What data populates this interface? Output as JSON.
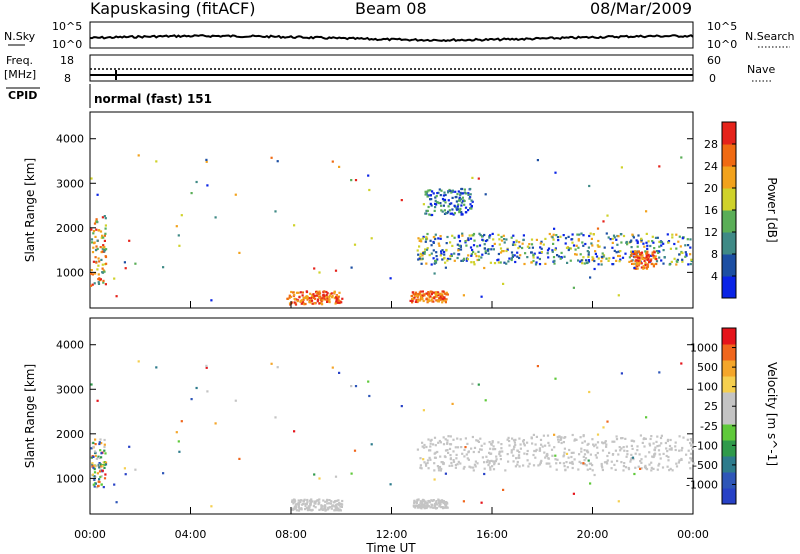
{
  "header": {
    "station": "Kapuskasing (fitACF)",
    "beam": "Beam 08",
    "date": "08/Mar/2009"
  },
  "summary_panels": {
    "nsky_label": "N.Sky",
    "nsearch_label": "N.Search",
    "nsky_ticks": [
      "10^5",
      "10^0"
    ],
    "nsky_right_ticks": [
      "10^5",
      "10^0"
    ],
    "freq_label_1": "Freq.",
    "freq_label_2": "[MHz]",
    "freq_ticks": [
      "18",
      "8"
    ],
    "nave_label": "Nave",
    "nave_ticks": [
      "60",
      "0"
    ],
    "cpid_label": "CPID",
    "cpid_value": "normal (fast) 151"
  },
  "colors": {
    "power_scale": [
      "#0a24e6",
      "#1c4fa3",
      "#3f8a86",
      "#5aae57",
      "#cfd22a",
      "#f2a21c",
      "#f06a12",
      "#e5231b"
    ],
    "velocity_scale": [
      "#e5141b",
      "#f0661c",
      "#f4a62a",
      "#f5cf4f",
      "#c4c4c4",
      "#c4c4c4",
      "#5fc93a",
      "#2f9a4b",
      "#2d7b8c",
      "#2e56b8",
      "#2741c6"
    ]
  },
  "chart_data": [
    {
      "type": "heatmap",
      "xlabel": "",
      "ylabel": "Slant Range [km]",
      "yticks": [
        "4000",
        "3000",
        "2000",
        "1000"
      ],
      "ylim": [
        200,
        4600
      ],
      "colorbar_label": "Power [dB]",
      "colorbar_ticks": [
        "28",
        "24",
        "20",
        "16",
        "12",
        "8",
        "4"
      ],
      "colorbar_range": [
        0,
        32
      ],
      "scatter_regions": [
        {
          "hours": [
            13.0,
            24.0
          ],
          "range_km": [
            1200,
            1900
          ],
          "level": "mixed"
        },
        {
          "hours": [
            0.0,
            0.6
          ],
          "range_km": [
            700,
            2300
          ],
          "level": "mixed-high"
        },
        {
          "hours": [
            7.8,
            10.0
          ],
          "range_km": [
            300,
            600
          ],
          "level": "high"
        },
        {
          "hours": [
            12.7,
            14.2
          ],
          "range_km": [
            350,
            600
          ],
          "level": "high"
        },
        {
          "hours": [
            13.3,
            15.2
          ],
          "range_km": [
            2300,
            2900
          ],
          "level": "low"
        },
        {
          "hours": [
            21.5,
            22.5
          ],
          "range_km": [
            1100,
            1500
          ],
          "level": "high"
        }
      ]
    },
    {
      "type": "heatmap",
      "xlabel": "Time UT",
      "ylabel": "Slant Range [km]",
      "yticks": [
        "4000",
        "3000",
        "2000",
        "1000"
      ],
      "ylim": [
        200,
        4600
      ],
      "xticks": [
        "00:00",
        "04:00",
        "08:00",
        "12:00",
        "16:00",
        "20:00",
        "00:00"
      ],
      "xlim_hours": [
        0,
        24
      ],
      "colorbar_label": "Velocity [m s^-1]",
      "colorbar_ticks": [
        "1000",
        "500",
        "100",
        "25",
        "-25",
        "-100",
        "-500",
        "-1000"
      ],
      "scatter_regions": [
        {
          "hours": [
            13.0,
            24.0
          ],
          "range_km": [
            1200,
            2000
          ],
          "level": "ground-scatter"
        },
        {
          "hours": [
            8.0,
            10.0
          ],
          "range_km": [
            300,
            550
          ],
          "level": "ground-scatter"
        },
        {
          "hours": [
            12.8,
            14.2
          ],
          "range_km": [
            350,
            550
          ],
          "level": "ground-scatter"
        },
        {
          "hours": [
            0.0,
            0.6
          ],
          "range_km": [
            800,
            1900
          ],
          "level": "mixed"
        }
      ]
    }
  ]
}
